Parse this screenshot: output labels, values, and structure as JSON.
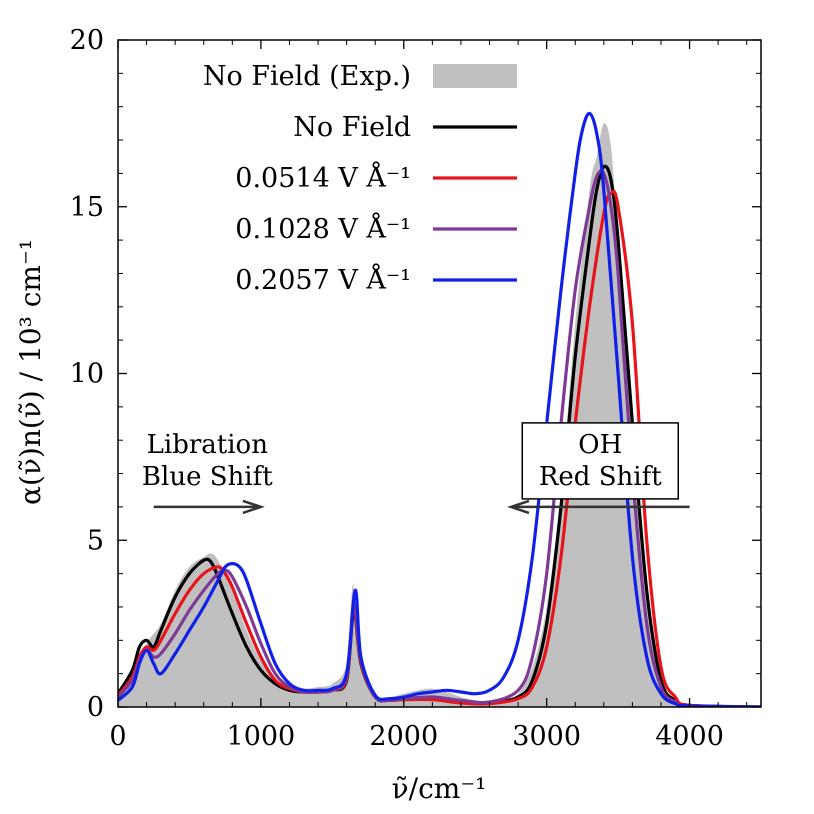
{
  "chart_data": {
    "type": "line",
    "title": "",
    "xlabel": "ν̃/cm⁻¹",
    "ylabel": "α(ν̃)n(ν̃) / 10³ cm⁻¹",
    "xlim": [
      0,
      4500
    ],
    "ylim": [
      0,
      20
    ],
    "x_ticks": [
      "0",
      "1000",
      "2000",
      "3000",
      "4000"
    ],
    "y_ticks": [
      "0",
      "5",
      "10",
      "15",
      "20"
    ],
    "grid": false,
    "legend_position": "top-left",
    "legend": [
      {
        "label": "No Field (Exp.)",
        "style": "fill",
        "color": "#c0c0c0"
      },
      {
        "label": "No Field",
        "style": "line",
        "color": "#000000"
      },
      {
        "label": "0.0514 V Å⁻¹",
        "style": "line",
        "color": "#e8141b"
      },
      {
        "label": "0.1028 V Å⁻¹",
        "style": "line",
        "color": "#7e3a96"
      },
      {
        "label": "0.2057 V Å⁻¹",
        "style": "line",
        "color": "#1020e8"
      }
    ],
    "series": [
      {
        "name": "No Field (Exp.)",
        "type": "area",
        "color": "#c0c0c0",
        "x": [
          0,
          100,
          200,
          300,
          400,
          500,
          600,
          650,
          700,
          800,
          900,
          1000,
          1100,
          1200,
          1300,
          1400,
          1500,
          1600,
          1640,
          1660,
          1700,
          1800,
          1900,
          2000,
          2100,
          2200,
          2300,
          2400,
          2500,
          2600,
          2700,
          2800,
          2900,
          3000,
          3100,
          3200,
          3300,
          3350,
          3400,
          3450,
          3500,
          3600,
          3700,
          3750,
          3800,
          3850,
          3900,
          4000,
          4500
        ],
        "y": [
          0.3,
          0.9,
          1.9,
          2.5,
          3.5,
          4.2,
          4.5,
          4.6,
          4.4,
          3.5,
          2.3,
          1.4,
          0.8,
          0.6,
          0.55,
          0.6,
          0.7,
          1.3,
          3.6,
          3.0,
          1.5,
          0.35,
          0.3,
          0.4,
          0.5,
          0.55,
          0.45,
          0.3,
          0.2,
          0.18,
          0.22,
          0.4,
          1.2,
          3.0,
          6.5,
          11.5,
          15.5,
          16.5,
          17.5,
          16.8,
          14.0,
          8.5,
          3.5,
          2.0,
          0.8,
          0.3,
          0.1,
          0.05,
          0.0
        ]
      },
      {
        "name": "No Field",
        "type": "line",
        "color": "#000000",
        "x": [
          0,
          100,
          150,
          200,
          250,
          300,
          400,
          500,
          600,
          650,
          700,
          800,
          900,
          1000,
          1100,
          1200,
          1300,
          1400,
          1500,
          1600,
          1650,
          1700,
          1800,
          1900,
          2000,
          2200,
          2400,
          2600,
          2800,
          2900,
          3000,
          3100,
          3200,
          3300,
          3350,
          3400,
          3450,
          3500,
          3600,
          3700,
          3800,
          3900,
          4000,
          4500
        ],
        "y": [
          0.4,
          1.1,
          1.8,
          2.0,
          1.8,
          2.3,
          3.3,
          4.0,
          4.4,
          4.35,
          3.9,
          2.8,
          1.8,
          1.1,
          0.7,
          0.5,
          0.45,
          0.45,
          0.5,
          0.8,
          2.9,
          1.3,
          0.3,
          0.2,
          0.25,
          0.25,
          0.15,
          0.12,
          0.3,
          0.8,
          2.5,
          6.0,
          10.5,
          14.0,
          15.5,
          16.2,
          15.8,
          14.0,
          8.5,
          3.5,
          0.8,
          0.2,
          0.05,
          0.0
        ]
      },
      {
        "name": "0.0514 V Å⁻¹",
        "type": "line",
        "color": "#e8141b",
        "x": [
          0,
          100,
          150,
          200,
          250,
          300,
          400,
          500,
          600,
          700,
          750,
          800,
          900,
          1000,
          1100,
          1200,
          1300,
          1400,
          1500,
          1600,
          1650,
          1700,
          1800,
          1900,
          2000,
          2200,
          2400,
          2600,
          2800,
          2900,
          3000,
          3100,
          3200,
          3300,
          3400,
          3450,
          3500,
          3600,
          3700,
          3800,
          3900,
          4000,
          4500
        ],
        "y": [
          0.35,
          0.9,
          1.5,
          1.8,
          1.7,
          2.0,
          2.8,
          3.5,
          4.0,
          4.2,
          4.0,
          3.6,
          2.5,
          1.5,
          0.8,
          0.55,
          0.45,
          0.45,
          0.5,
          0.85,
          3.0,
          1.35,
          0.3,
          0.2,
          0.22,
          0.22,
          0.12,
          0.1,
          0.25,
          0.6,
          1.8,
          4.5,
          8.5,
          12.0,
          14.8,
          15.4,
          15.0,
          11.5,
          5.0,
          1.2,
          0.3,
          0.05,
          0.0
        ]
      },
      {
        "name": "0.1028 V Å⁻¹",
        "type": "line",
        "color": "#7e3a96",
        "x": [
          0,
          100,
          150,
          200,
          250,
          300,
          400,
          500,
          600,
          700,
          750,
          800,
          900,
          1000,
          1100,
          1200,
          1300,
          1400,
          1500,
          1600,
          1650,
          1700,
          1800,
          1900,
          2000,
          2200,
          2400,
          2600,
          2800,
          2900,
          3000,
          3100,
          3200,
          3300,
          3350,
          3400,
          3450,
          3500,
          3600,
          3700,
          3800,
          3900,
          4000,
          4500
        ],
        "y": [
          0.3,
          0.8,
          1.4,
          1.7,
          1.5,
          1.6,
          2.2,
          2.9,
          3.5,
          4.0,
          4.1,
          3.9,
          3.0,
          1.9,
          1.0,
          0.6,
          0.45,
          0.45,
          0.5,
          0.9,
          3.1,
          1.4,
          0.3,
          0.2,
          0.25,
          0.3,
          0.2,
          0.15,
          0.5,
          1.5,
          4.0,
          8.5,
          12.5,
          15.0,
          15.9,
          16.0,
          15.0,
          13.0,
          7.0,
          2.5,
          0.6,
          0.15,
          0.03,
          0.0
        ]
      },
      {
        "name": "0.2057 V Å⁻¹",
        "type": "line",
        "color": "#1020e8",
        "x": [
          0,
          100,
          150,
          200,
          250,
          300,
          400,
          500,
          600,
          700,
          750,
          800,
          850,
          900,
          1000,
          1100,
          1200,
          1300,
          1400,
          1500,
          1600,
          1660,
          1700,
          1800,
          1900,
          2000,
          2100,
          2200,
          2300,
          2400,
          2500,
          2600,
          2700,
          2800,
          2900,
          3000,
          3100,
          3200,
          3250,
          3300,
          3350,
          3400,
          3500,
          3600,
          3700,
          3800,
          3900,
          4000,
          4500
        ],
        "y": [
          0.2,
          0.6,
          1.3,
          1.7,
          1.3,
          1.0,
          1.6,
          2.3,
          3.0,
          3.8,
          4.2,
          4.3,
          4.2,
          3.8,
          2.5,
          1.3,
          0.7,
          0.5,
          0.5,
          0.55,
          1.0,
          3.5,
          1.5,
          0.35,
          0.25,
          0.3,
          0.4,
          0.45,
          0.5,
          0.45,
          0.4,
          0.5,
          0.9,
          2.0,
          4.5,
          8.5,
          12.5,
          16.0,
          17.3,
          17.8,
          17.2,
          15.5,
          10.0,
          4.5,
          1.5,
          0.4,
          0.1,
          0.03,
          0.0
        ]
      }
    ],
    "annotations": [
      {
        "lines": [
          "Libration",
          "Blue Shift"
        ],
        "arrow_from": 250,
        "arrow_to": 1000,
        "arrow_y": 6.0,
        "boxed": false
      },
      {
        "lines": [
          "OH",
          "Red Shift"
        ],
        "arrow_from": 4000,
        "arrow_to": 2750,
        "arrow_y": 6.0,
        "boxed": true
      }
    ]
  }
}
